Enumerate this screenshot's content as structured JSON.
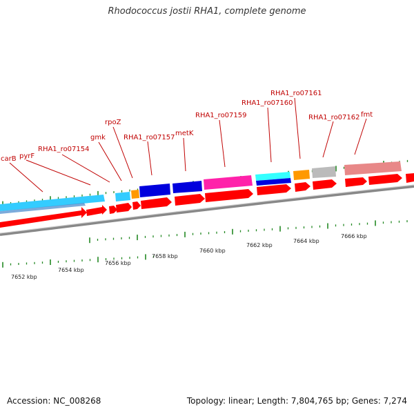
{
  "title": "Rhodococcus jostii RHA1, complete genome",
  "footer": {
    "accession": "Accession: NC_008268",
    "summary": "Topology: linear; Length: 7,804,765 bp; Genes: 7,274"
  },
  "scale_labels": [
    "7652 kbp",
    "7654 kbp",
    "7656 kbp",
    "7658 kbp",
    "7660 kbp",
    "7662 kbp",
    "7664 kbp",
    "7666 kbp"
  ],
  "gene_labels": [
    "carB",
    "pyrF",
    "RHA1_ro07154",
    "gmk",
    "rpoZ",
    "RHA1_ro07157",
    "metK",
    "RHA1_ro07159",
    "RHA1_ro07160",
    "RHA1_ro07161",
    "RHA1_ro07162",
    "fmt"
  ],
  "colors": {
    "cds": "#ff0000",
    "cyan": "#33ccff",
    "light_blue": "#66aaff",
    "orange": "#ff9900",
    "blue": "#0000dd",
    "magenta": "#ff22aa",
    "gray": "#bbbbbb",
    "pink": "#e88888",
    "tick": "#228822",
    "label": "#c00000"
  }
}
